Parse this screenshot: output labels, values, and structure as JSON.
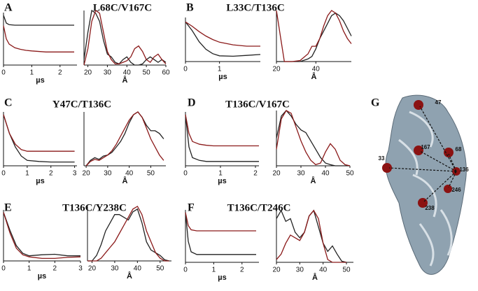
{
  "panels": [
    {
      "letter": "A",
      "title": "L68C/V167C"
    },
    {
      "letter": "B",
      "title": "L33C/T136C"
    },
    {
      "letter": "C",
      "title": "Y47C/T136C"
    },
    {
      "letter": "D",
      "title": "T136C/V167C"
    },
    {
      "letter": "E",
      "title": "T136C/Y238C"
    },
    {
      "letter": "F",
      "title": "T136C/T246C"
    }
  ],
  "structure": {
    "letter": "G",
    "labels": [
      "47",
      "68",
      "167",
      "33",
      "136",
      "246",
      "238"
    ]
  },
  "chart_data": [
    {
      "type": "line",
      "xlabel": "µs",
      "xlim": [
        0,
        2.6
      ],
      "xticks": [
        0,
        1,
        2
      ],
      "ylim": [
        0,
        1
      ],
      "x": [
        0,
        0.1,
        0.2,
        0.4,
        0.6,
        0.8,
        1.0,
        1.5,
        2.0,
        2.5
      ],
      "series": [
        {
          "color": "#222222",
          "values": [
            0.95,
            0.8,
            0.77,
            0.76,
            0.76,
            0.76,
            0.76,
            0.76,
            0.76,
            0.76
          ]
        },
        {
          "color": "#8b1a1a",
          "values": [
            0.75,
            0.5,
            0.4,
            0.33,
            0.3,
            0.28,
            0.27,
            0.25,
            0.25,
            0.25
          ]
        }
      ]
    },
    {
      "type": "line",
      "xlabel": "Å",
      "xlim": [
        18,
        60
      ],
      "xticks": [
        20,
        30,
        40,
        50,
        60
      ],
      "ylim": [
        0,
        1
      ],
      "x": [
        18,
        20,
        22,
        24,
        26,
        28,
        30,
        32,
        34,
        36,
        38,
        40,
        42,
        44,
        46,
        48,
        50,
        52,
        54,
        56,
        58,
        60
      ],
      "series": [
        {
          "color": "#222222",
          "values": [
            0.1,
            0.6,
            1.0,
            0.95,
            0.8,
            0.45,
            0.2,
            0.15,
            0.05,
            0.02,
            0.1,
            0.15,
            0.05,
            0.0,
            0.0,
            0.02,
            0.1,
            0.15,
            0.1,
            0.05,
            0.1,
            0.05
          ]
        },
        {
          "color": "#8b1a1a",
          "values": [
            0,
            0.3,
            0.8,
            1.0,
            0.95,
            0.6,
            0.25,
            0.1,
            0.02,
            0.02,
            0.05,
            0.08,
            0.15,
            0.3,
            0.35,
            0.25,
            0.1,
            0.05,
            0.15,
            0.2,
            0.1,
            0.02
          ]
        }
      ]
    },
    {
      "type": "line",
      "xlabel": "µs",
      "xlim": [
        0,
        2.2
      ],
      "xticks": [
        0,
        1
      ],
      "ylim": [
        0,
        1
      ],
      "x": [
        0,
        0.2,
        0.4,
        0.6,
        0.8,
        1.0,
        1.4,
        1.8,
        2.2
      ],
      "series": [
        {
          "color": "#222222",
          "values": [
            0.9,
            0.7,
            0.45,
            0.28,
            0.18,
            0.13,
            0.12,
            0.14,
            0.16
          ]
        },
        {
          "color": "#8b1a1a",
          "values": [
            0.9,
            0.8,
            0.68,
            0.58,
            0.5,
            0.44,
            0.38,
            0.35,
            0.35
          ]
        }
      ]
    },
    {
      "type": "line",
      "xlabel": "Å",
      "xlim": [
        20,
        58
      ],
      "xticks": [
        20,
        40
      ],
      "ylim": [
        0,
        1
      ],
      "x": [
        20,
        22,
        24,
        28,
        32,
        36,
        38,
        40,
        42,
        44,
        46,
        48,
        50,
        52,
        54,
        56,
        58
      ],
      "series": [
        {
          "color": "#222222",
          "values": [
            0,
            0,
            0,
            0,
            0,
            0.05,
            0.1,
            0.25,
            0.45,
            0.6,
            0.75,
            0.9,
            0.95,
            0.9,
            0.8,
            0.65,
            0.5
          ]
        },
        {
          "color": "#8b1a1a",
          "values": [
            1.0,
            0.5,
            0,
            0,
            0.02,
            0.15,
            0.3,
            0.3,
            0.45,
            0.7,
            0.9,
            1.0,
            0.95,
            0.8,
            0.6,
            0.45,
            0.35
          ]
        }
      ]
    },
    {
      "type": "line",
      "xlabel": "µs",
      "xlim": [
        0,
        3.1
      ],
      "xticks": [
        0,
        1,
        2,
        3
      ],
      "ylim": [
        0,
        1
      ],
      "x": [
        0,
        0.25,
        0.5,
        0.75,
        1,
        1.5,
        2,
        2.5,
        3
      ],
      "series": [
        {
          "color": "#222222",
          "values": [
            0.95,
            0.6,
            0.35,
            0.18,
            0.1,
            0.08,
            0.07,
            0.07,
            0.07
          ]
        },
        {
          "color": "#8b1a1a",
          "values": [
            0.95,
            0.6,
            0.4,
            0.3,
            0.27,
            0.27,
            0.27,
            0.27,
            0.27
          ]
        }
      ]
    },
    {
      "type": "line",
      "xlabel": "Å",
      "xlim": [
        19,
        57
      ],
      "xticks": [
        20,
        30,
        40,
        50
      ],
      "ylim": [
        0,
        1
      ],
      "x": [
        20,
        22,
        24,
        26,
        28,
        30,
        32,
        34,
        36,
        38,
        40,
        42,
        44,
        46,
        48,
        50,
        52,
        54,
        56
      ],
      "series": [
        {
          "color": "#222222",
          "values": [
            0,
            0.1,
            0.15,
            0.12,
            0.18,
            0.2,
            0.25,
            0.35,
            0.45,
            0.6,
            0.8,
            0.95,
            1.0,
            0.9,
            0.75,
            0.65,
            0.65,
            0.6,
            0.5
          ]
        },
        {
          "color": "#8b1a1a",
          "values": [
            0,
            0.08,
            0.12,
            0.1,
            0.15,
            0.2,
            0.28,
            0.4,
            0.55,
            0.7,
            0.85,
            0.95,
            1.0,
            0.9,
            0.7,
            0.5,
            0.35,
            0.2,
            0.1
          ]
        }
      ]
    },
    {
      "type": "line",
      "xlabel": "µs",
      "xlim": [
        0,
        2.1
      ],
      "xticks": [
        0,
        1,
        2
      ],
      "ylim": [
        0,
        1
      ],
      "x": [
        0,
        0.1,
        0.2,
        0.4,
        0.6,
        0.8,
        1,
        1.4,
        1.8,
        2.1
      ],
      "series": [
        {
          "color": "#222222",
          "values": [
            0.95,
            0.35,
            0.15,
            0.1,
            0.08,
            0.08,
            0.08,
            0.08,
            0.08,
            0.08
          ]
        },
        {
          "color": "#8b1a1a",
          "values": [
            0.95,
            0.6,
            0.45,
            0.4,
            0.38,
            0.37,
            0.37,
            0.37,
            0.37,
            0.37
          ]
        }
      ]
    },
    {
      "type": "line",
      "xlabel": "Å",
      "xlim": [
        20,
        50
      ],
      "xticks": [
        20,
        30,
        40,
        50
      ],
      "ylim": [
        0,
        1
      ],
      "x": [
        20,
        22,
        24,
        26,
        28,
        30,
        32,
        34,
        36,
        38,
        40,
        42,
        44,
        46,
        48,
        50
      ],
      "series": [
        {
          "color": "#222222",
          "values": [
            0.5,
            0.9,
            1.0,
            0.9,
            0.75,
            0.65,
            0.6,
            0.45,
            0.3,
            0.15,
            0.05,
            0.02,
            0,
            0,
            0,
            0
          ]
        },
        {
          "color": "#8b1a1a",
          "values": [
            0.3,
            0.85,
            1.0,
            0.95,
            0.7,
            0.45,
            0.25,
            0.1,
            0.02,
            0.05,
            0.25,
            0.4,
            0.3,
            0.1,
            0.02,
            0
          ]
        }
      ]
    },
    {
      "type": "line",
      "xlabel": "µs",
      "xlim": [
        0,
        3
      ],
      "xticks": [
        0,
        1,
        2,
        3
      ],
      "ylim": [
        0,
        1
      ],
      "x": [
        0,
        0.25,
        0.5,
        0.75,
        1,
        1.5,
        2,
        2.5,
        3
      ],
      "series": [
        {
          "color": "#222222",
          "values": [
            0.95,
            0.6,
            0.3,
            0.15,
            0.1,
            0.12,
            0.13,
            0.1,
            0.1
          ]
        },
        {
          "color": "#8b1a1a",
          "values": [
            0.95,
            0.55,
            0.25,
            0.12,
            0.08,
            0.05,
            0.05,
            0.07,
            0.08
          ]
        }
      ]
    },
    {
      "type": "line",
      "xlabel": "Å",
      "xlim": [
        18,
        55
      ],
      "xticks": [
        20,
        30,
        40,
        50
      ],
      "ylim": [
        0,
        1
      ],
      "x": [
        18,
        20,
        22,
        24,
        26,
        28,
        30,
        32,
        34,
        36,
        38,
        40,
        42,
        44,
        46,
        48,
        50,
        52,
        54
      ],
      "series": [
        {
          "color": "#222222",
          "values": [
            0,
            0,
            0.1,
            0.3,
            0.55,
            0.7,
            0.85,
            0.85,
            0.8,
            0.75,
            0.9,
            0.95,
            0.7,
            0.35,
            0.2,
            0.15,
            0.1,
            0.02,
            0
          ]
        },
        {
          "color": "#8b1a1a",
          "values": [
            0,
            0,
            0,
            0.05,
            0.15,
            0.25,
            0.35,
            0.5,
            0.65,
            0.8,
            0.95,
            1.0,
            0.85,
            0.55,
            0.35,
            0.15,
            0.05,
            0,
            0
          ]
        }
      ]
    },
    {
      "type": "line",
      "xlabel": "µs",
      "xlim": [
        0,
        2.6
      ],
      "xticks": [
        0,
        1,
        2
      ],
      "ylim": [
        0,
        1
      ],
      "x": [
        0,
        0.1,
        0.2,
        0.4,
        0.6,
        0.8,
        1,
        1.5,
        2,
        2.5
      ],
      "series": [
        {
          "color": "#222222",
          "values": [
            0.95,
            0.4,
            0.2,
            0.15,
            0.15,
            0.15,
            0.15,
            0.15,
            0.15,
            0.15
          ]
        },
        {
          "color": "#8b1a1a",
          "values": [
            0.95,
            0.7,
            0.62,
            0.6,
            0.6,
            0.6,
            0.6,
            0.6,
            0.6,
            0.6
          ]
        }
      ]
    },
    {
      "type": "line",
      "xlabel": "Å",
      "xlim": [
        20,
        53
      ],
      "xticks": [
        20,
        30,
        40,
        50
      ],
      "ylim": [
        0,
        1
      ],
      "x": [
        20,
        22,
        24,
        26,
        28,
        30,
        32,
        34,
        36,
        38,
        40,
        42,
        44,
        46,
        48,
        50
      ],
      "series": [
        {
          "color": "#222222",
          "values": [
            0.8,
            0.95,
            0.75,
            0.8,
            0.55,
            0.45,
            0.55,
            0.85,
            0.95,
            0.65,
            0.35,
            0.2,
            0.3,
            0.15,
            0.02,
            0
          ]
        },
        {
          "color": "#8b1a1a",
          "values": [
            0.05,
            0.15,
            0.35,
            0.5,
            0.45,
            0.4,
            0.55,
            0.85,
            0.95,
            0.8,
            0.35,
            0.05,
            0,
            0,
            0,
            0
          ]
        }
      ]
    }
  ]
}
